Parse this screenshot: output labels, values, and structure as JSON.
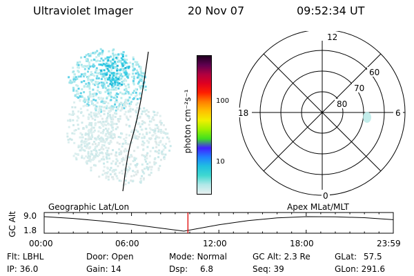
{
  "header": {
    "title": "Ultraviolet Imager",
    "date": "20 Nov 07",
    "time": "09:52:34 UT"
  },
  "colorbar": {
    "unit_label": "photon cm⁻²s⁻¹",
    "ticks": [
      "100",
      "10"
    ],
    "colors": [
      "#e8f0f0",
      "#b0e8e8",
      "#40d8d0",
      "#20c0e0",
      "#2080ff",
      "#4020ff",
      "#40e020",
      "#a0f000",
      "#f0f000",
      "#ffc000",
      "#ff8000",
      "#ff2000",
      "#e00020",
      "#b00040",
      "#600050",
      "#200020"
    ]
  },
  "polar": {
    "mlt_labels": {
      "top": "12",
      "left": "18",
      "right": "6",
      "bottom": "0"
    },
    "lat_labels": [
      "60",
      "70",
      "80"
    ]
  },
  "timeline": {
    "left_title": "Geographic Lat/Lon",
    "right_title": "Apex  MLat/MLT",
    "y_axis_label": "GC Alt",
    "y_ticks": [
      "9.0",
      "1.8"
    ],
    "x_ticks": [
      "00:00",
      "06:00",
      "12:00",
      "18:00",
      "23:59"
    ],
    "current_time_hours": 9.876,
    "marker_color": "#e00000",
    "orbit_altitude": {
      "time_hours": [
        0,
        2,
        4,
        6,
        8,
        9.6,
        10.5,
        12,
        14,
        16,
        18,
        20,
        22,
        23.98
      ],
      "alt_re": [
        9.0,
        8.1,
        6.8,
        5.2,
        3.3,
        1.8,
        3.0,
        5.0,
        7.0,
        8.4,
        9.0,
        8.9,
        8.5,
        7.5
      ]
    }
  },
  "footer": {
    "filter_label": "Flt:",
    "filter_value": "LBHL",
    "ip_label": "IP:",
    "ip_value": "36.0",
    "door_label": "Door:",
    "door_value": "Open",
    "gain_label": "Gain:",
    "gain_value": "14",
    "mode_label": "Mode:",
    "mode_value": "Normal",
    "dsp_label": "Dsp:",
    "dsp_value": "6.8",
    "gcalt_label": "GC Alt:",
    "gcalt_value": "2.3 Re",
    "seq_label": "Seq:",
    "seq_value": "39",
    "glat_label": "GLat:",
    "glat_value": "57.5",
    "glon_label": "GLon:",
    "glon_value": "291.6"
  }
}
